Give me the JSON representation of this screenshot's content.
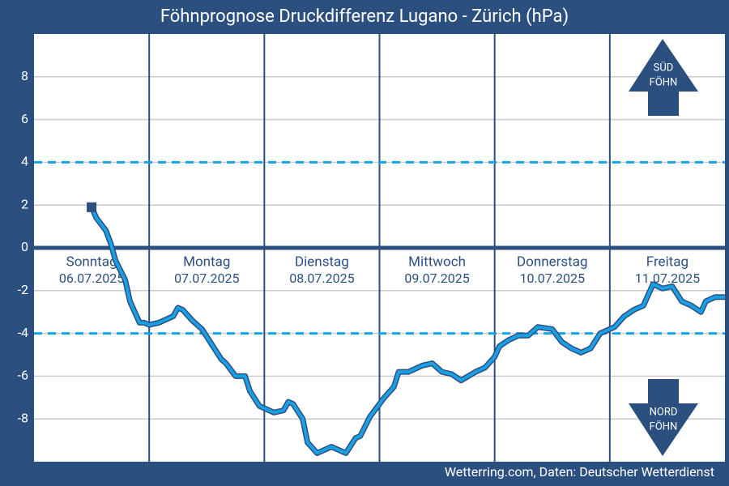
{
  "chart_data": {
    "type": "line",
    "title": "Föhnprognose Druckdifferenz Lugano - Zürich (hPa)",
    "source": "Wetterring.com, Daten: Deutscher Wetterdienst",
    "days": [
      {
        "name": "Sonntag",
        "date": "06.07.2025"
      },
      {
        "name": "Montag",
        "date": "07.07.2025"
      },
      {
        "name": "Dienstag",
        "date": "08.07.2025"
      },
      {
        "name": "Mittwoch",
        "date": "09.07.2025"
      },
      {
        "name": "Donnerstag",
        "date": "10.07.2025"
      },
      {
        "name": "Freitag",
        "date": "11.07.2025"
      }
    ],
    "arrows": {
      "up": [
        "SÜD",
        "FÖHN"
      ],
      "down": [
        "NORD",
        "FÖHN"
      ]
    },
    "xlim": [
      0,
      144
    ],
    "xticks": [
      24,
      48,
      72,
      96,
      120
    ],
    "ylim": [
      -10,
      10
    ],
    "yticks": [
      -8,
      -6,
      -4,
      -2,
      0,
      2,
      4,
      6,
      8
    ],
    "reference_lines": [
      4,
      -4
    ],
    "grid": true,
    "x": [
      12,
      13,
      15,
      16,
      17,
      19,
      20,
      22,
      23,
      24,
      26,
      28,
      29,
      30,
      31,
      33,
      35,
      37,
      39,
      40,
      42,
      44,
      45,
      47,
      48,
      50,
      52,
      53,
      54,
      56,
      57,
      59,
      60,
      62,
      64,
      65,
      67,
      68,
      70,
      71,
      73,
      75,
      76,
      78,
      80,
      81,
      83,
      85,
      87,
      89,
      92,
      94,
      96,
      97,
      99,
      101,
      103,
      105,
      108,
      110,
      112,
      114,
      116,
      118,
      121,
      123,
      125,
      127,
      129,
      131,
      133,
      135,
      137,
      139,
      140,
      142,
      144
    ],
    "series": [
      {
        "name": "Druckdifferenz",
        "color": "#1a9fe3",
        "values": [
          1.9,
          1.4,
          0.8,
          0.2,
          -0.6,
          -1.5,
          -2.5,
          -3.5,
          -3.5,
          -3.6,
          -3.5,
          -3.3,
          -3.2,
          -2.8,
          -2.9,
          -3.4,
          -3.8,
          -4.5,
          -5.2,
          -5.4,
          -6.0,
          -6.0,
          -6.7,
          -7.4,
          -7.5,
          -7.7,
          -7.6,
          -7.2,
          -7.3,
          -8.0,
          -9.1,
          -9.6,
          -9.5,
          -9.3,
          -9.5,
          -9.6,
          -8.9,
          -8.8,
          -7.9,
          -7.6,
          -7.0,
          -6.5,
          -5.8,
          -5.8,
          -5.6,
          -5.5,
          -5.4,
          -5.8,
          -5.9,
          -6.2,
          -5.8,
          -5.6,
          -5.1,
          -4.6,
          -4.3,
          -4.1,
          -4.1,
          -3.7,
          -3.8,
          -4.4,
          -4.7,
          -4.9,
          -4.7,
          -4.0,
          -3.7,
          -3.2,
          -2.9,
          -2.7,
          -1.7,
          -1.9,
          -1.8,
          -2.5,
          -2.7,
          -3.0,
          -2.5,
          -2.3,
          -2.3
        ]
      }
    ]
  }
}
